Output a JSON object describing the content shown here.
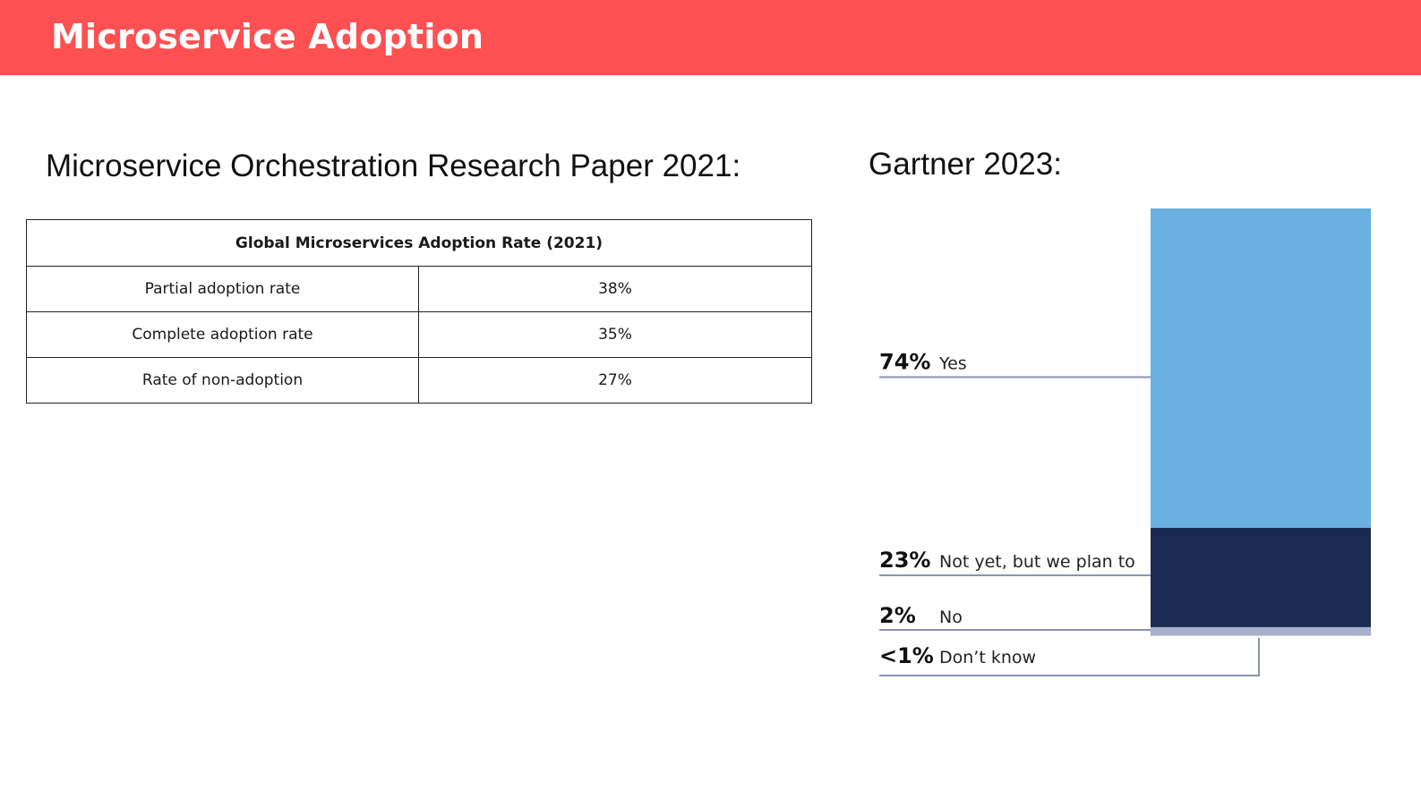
{
  "header": {
    "title": "Microservice Adoption",
    "color": "#fd5052"
  },
  "left": {
    "heading": "Microservice Orchestration Research Paper 2021:",
    "table": {
      "title": "Global Microservices Adoption Rate (2021)",
      "rows": [
        {
          "label": "Partial adoption rate",
          "value": "38%"
        },
        {
          "label": "Complete adoption rate",
          "value": "35%"
        },
        {
          "label": "Rate of non-adoption",
          "value": "27%"
        }
      ]
    }
  },
  "right": {
    "heading": "Gartner 2023:"
  },
  "chart_data": {
    "type": "bar",
    "stacked": true,
    "orientation": "vertical",
    "categories": [
      "Yes",
      "Not yet, but we plan to",
      "No",
      "Don’t know"
    ],
    "values": [
      74,
      23,
      2,
      0.5
    ],
    "percent_labels": [
      "74%",
      "23%",
      "2%",
      "<1%"
    ],
    "colors": [
      "#6ab0e0",
      "#1b2a52",
      "#a7afcb",
      "#ffffff"
    ],
    "grid": false,
    "legend": "none"
  }
}
